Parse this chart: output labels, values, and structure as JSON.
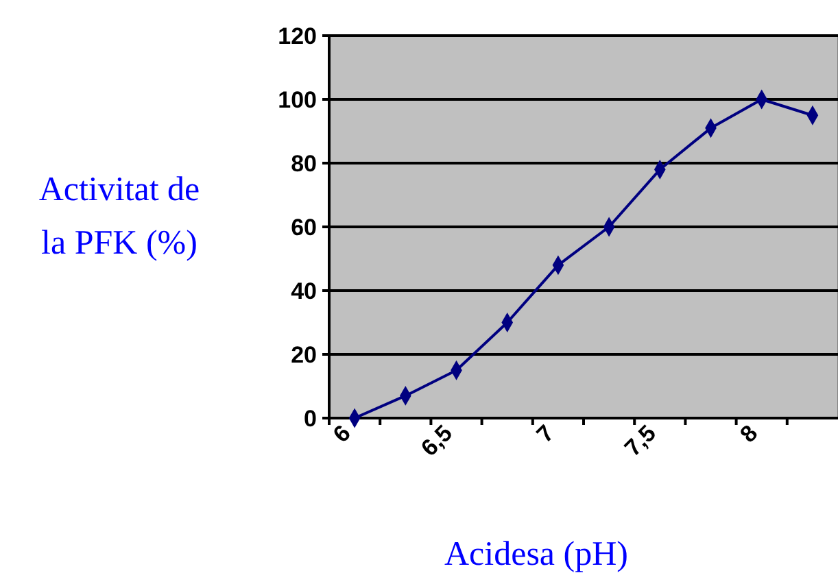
{
  "chart_data": {
    "type": "line",
    "xlabel": "Acidesa (pH)",
    "ylabel": "Activitat de la PFK (%)",
    "categories": [
      "6",
      null,
      "6,5",
      null,
      "7",
      null,
      "7,5",
      null,
      "8",
      null
    ],
    "series": [
      {
        "color": "#000080",
        "values": [
          0,
          7,
          15,
          30,
          48,
          60,
          78,
          91,
          100,
          95
        ]
      }
    ],
    "ylim": [
      0,
      120
    ],
    "yticks": [
      0,
      20,
      40,
      60,
      80,
      100,
      120
    ],
    "grid": "y",
    "marker": "diamond",
    "line_style": "solid"
  }
}
